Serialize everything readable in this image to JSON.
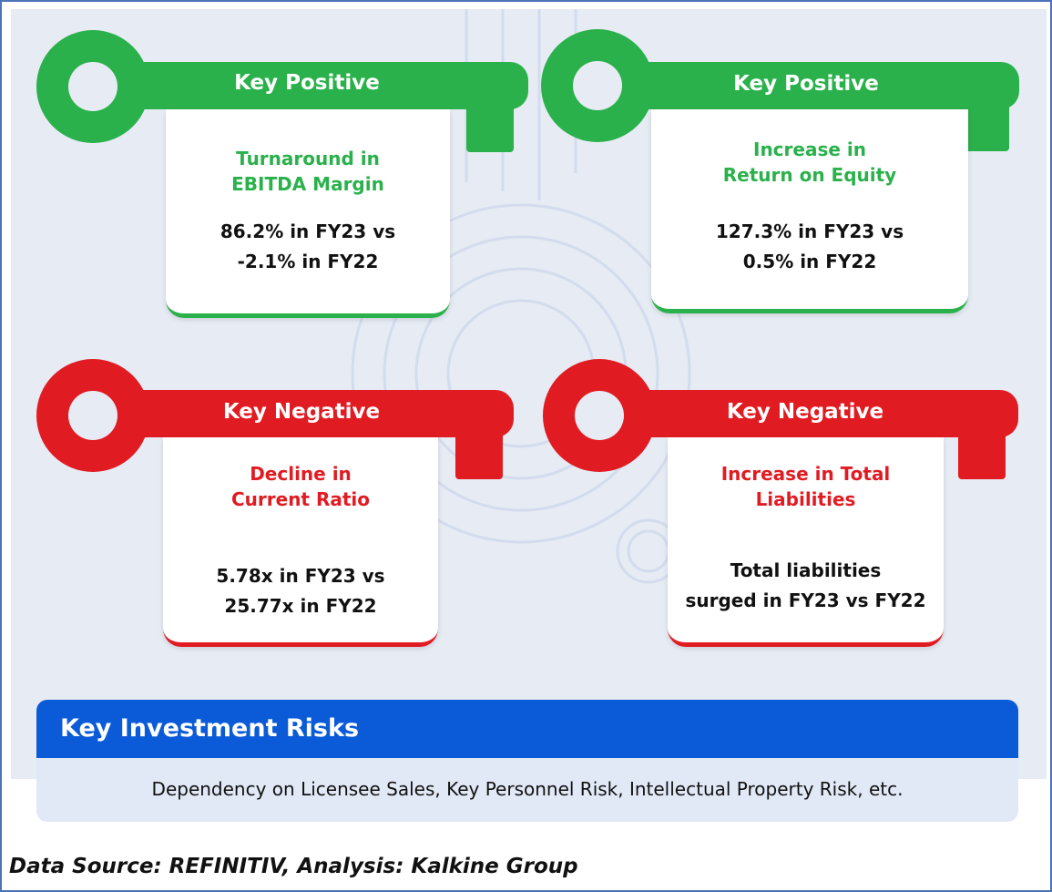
{
  "colors": {
    "positive": "#2ab14b",
    "negative": "#e11b22",
    "risk_header": "#0b5bd8",
    "background": "#e6ebf4"
  },
  "cards": [
    {
      "type": "positive",
      "key_label": "Key Positive",
      "heading": [
        "Turnaround in",
        "EBITDA Margin"
      ],
      "value": [
        "86.2% in FY23 vs",
        "-2.1% in FY22"
      ]
    },
    {
      "type": "positive",
      "key_label": "Key Positive",
      "heading": [
        "Increase in",
        "Return on Equity"
      ],
      "value": [
        "127.3% in FY23 vs",
        "0.5% in FY22"
      ]
    },
    {
      "type": "negative",
      "key_label": "Key Negative",
      "heading": [
        "Decline in",
        "Current Ratio"
      ],
      "value": [
        "5.78x in FY23 vs",
        "25.77x in FY22"
      ]
    },
    {
      "type": "negative",
      "key_label": "Key Negative",
      "heading": [
        "Increase in Total",
        "Liabilities"
      ],
      "value": [
        "Total liabilities",
        "surged in FY23 vs FY22"
      ]
    }
  ],
  "risks": {
    "title": "Key Investment Risks",
    "text": "Dependency on Licensee Sales, Key Personnel Risk, Intellectual Property Risk, etc."
  },
  "source": "Data Source: REFINITIV, Analysis: Kalkine Group"
}
